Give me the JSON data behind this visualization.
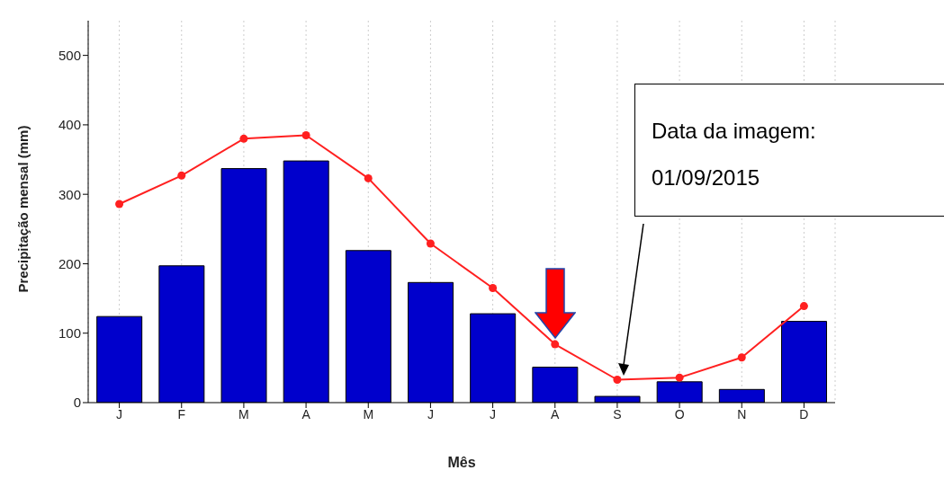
{
  "chart_data": {
    "type": "bar",
    "xlabel": "Mês",
    "ylabel": "Precipitação mensal (mm)",
    "categories": [
      "J",
      "F",
      "M",
      "A",
      "M",
      "J",
      "J",
      "A",
      "S",
      "O",
      "N",
      "D"
    ],
    "series": [
      {
        "color": "#0000cc",
        "values": [
          124,
          197,
          337,
          348,
          219,
          173,
          128,
          51,
          9,
          30,
          19,
          117
        ]
      },
      {
        "type": "line",
        "color": "#ff2020",
        "values": [
          286,
          327,
          380,
          385,
          323,
          229,
          165,
          84,
          33,
          36,
          65,
          139
        ]
      }
    ],
    "ylim": [
      0,
      550
    ],
    "yticks": [
      0,
      100,
      200,
      300,
      400,
      500
    ],
    "grid": "x",
    "legend": false,
    "marker": "circle",
    "line_style": "solid",
    "annotations": [
      "Data da imagem: 01/09/2015"
    ]
  }
}
